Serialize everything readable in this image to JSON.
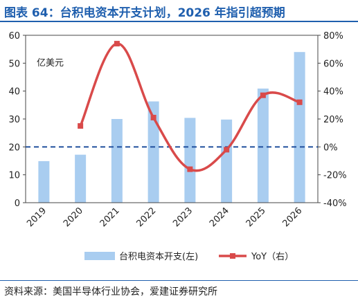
{
  "header": {
    "title": "图表 64：台积电资本开支计划，2026 年指引超预期"
  },
  "footer": {
    "source": "资料来源：美国半导体行业协会，爱建证券研究所"
  },
  "chart_data": {
    "type": "bar+line",
    "categories": [
      "2019",
      "2020",
      "2021",
      "2022",
      "2023",
      "2024",
      "2025",
      "2026"
    ],
    "series": [
      {
        "name": "台积电资本开支(左)",
        "type": "bar",
        "axis": "left",
        "color": "#a9cdf0",
        "values": [
          14.9,
          17.2,
          30.0,
          36.3,
          30.4,
          29.8,
          40.9,
          54.0
        ]
      },
      {
        "name": "YoY（右）",
        "type": "line",
        "axis": "right",
        "color": "#d94a4a",
        "values": [
          null,
          0.15,
          0.74,
          0.21,
          -0.16,
          -0.02,
          0.37,
          0.32
        ]
      }
    ],
    "y_left": {
      "min": 0,
      "max": 60,
      "ticks": [
        0,
        10,
        20,
        30,
        40,
        50,
        60
      ],
      "unit_label": "亿美元"
    },
    "y_right": {
      "min": -0.4,
      "max": 0.8,
      "ticks": [
        "-40%",
        "-20%",
        "0%",
        "20%",
        "40%",
        "60%",
        "80%"
      ]
    },
    "reference_line": {
      "axis": "right",
      "value": 0,
      "color": "#1f4e9c",
      "style": "dashed"
    },
    "legend": {
      "placement": "bottom"
    },
    "grid": false
  }
}
